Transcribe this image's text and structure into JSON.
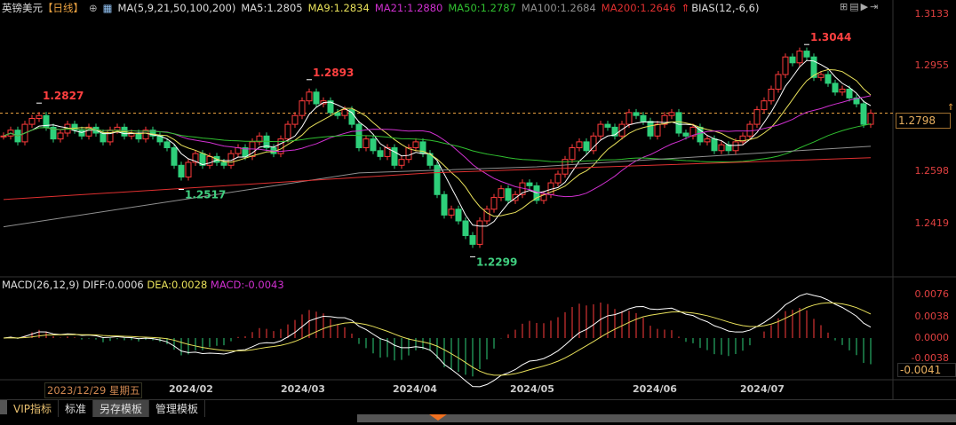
{
  "header": {
    "symbol": "英镑美元",
    "period": "【日线】",
    "ma_label": "MA(5,9,21,50,100,200)",
    "ma5": "MA5:1.2805",
    "ma9": "MA9:1.2834",
    "ma21": "MA21:1.2880",
    "ma50": "MA50:1.2787",
    "ma100": "MA100:1.2684",
    "ma200": "MA200:1.2646",
    "bias": "BIAS(12,-6,6)"
  },
  "price_axis": [
    "1.3133",
    "1.2955",
    "1.2598",
    "1.2419"
  ],
  "current_price": "1.2798",
  "macd_header": {
    "name": "MACD(26,12,9)",
    "diff": "DIFF:0.0006",
    "dea": "DEA:0.0028",
    "macd": "MACD:-0.0043"
  },
  "macd_axis": [
    "0.0076",
    "0.0038",
    "0.0000",
    "-0.0038"
  ],
  "macd_current": "-0.0041",
  "date_axis": {
    "cursor": "2023/12/29 星期五",
    "months": [
      "2024/02",
      "2024/03",
      "2024/04",
      "2024/05",
      "2024/06",
      "2024/07"
    ]
  },
  "tabs": [
    "VIP指标",
    "标准",
    "另存模板",
    "管理模板"
  ],
  "colors": {
    "up": "#ff3b3b",
    "down": "#2ecf7a",
    "ma5": "#ffffff",
    "ma9": "#e8e05a",
    "ma21": "#d030d0",
    "ma50": "#30c030",
    "ma100": "#909090",
    "ma200": "#e03030"
  },
  "chart_data": {
    "type": "candlestick",
    "ylim": [
      1.2419,
      1.3133
    ],
    "closes": [
      1.272,
      1.274,
      1.27,
      1.276,
      1.278,
      1.279,
      1.275,
      1.271,
      1.273,
      1.276,
      1.274,
      1.272,
      1.275,
      1.273,
      1.27,
      1.274,
      1.275,
      1.272,
      1.273,
      1.271,
      1.274,
      1.272,
      1.27,
      1.268,
      1.262,
      1.258,
      1.263,
      1.266,
      1.262,
      1.265,
      1.263,
      1.262,
      1.266,
      1.268,
      1.265,
      1.27,
      1.272,
      1.268,
      1.266,
      1.271,
      1.276,
      1.279,
      1.284,
      1.287,
      1.283,
      1.284,
      1.28,
      1.279,
      1.281,
      1.276,
      1.268,
      1.271,
      1.267,
      1.265,
      1.268,
      1.262,
      1.264,
      1.268,
      1.27,
      1.266,
      1.262,
      1.252,
      1.245,
      1.247,
      1.243,
      1.238,
      1.235,
      1.243,
      1.247,
      1.251,
      1.254,
      1.25,
      1.252,
      1.256,
      1.255,
      1.25,
      1.252,
      1.256,
      1.259,
      1.264,
      1.268,
      1.27,
      1.267,
      1.272,
      1.276,
      1.275,
      1.272,
      1.276,
      1.28,
      1.279,
      1.277,
      1.272,
      1.276,
      1.279,
      1.28,
      1.273,
      1.272,
      1.275,
      1.27,
      1.271,
      1.267,
      1.269,
      1.267,
      1.27,
      1.272,
      1.276,
      1.281,
      1.284,
      1.288,
      1.293,
      1.299,
      1.297,
      1.301,
      1.299,
      1.292,
      1.293,
      1.29,
      1.287,
      1.288,
      1.285,
      1.283,
      1.276,
      1.2798
    ],
    "extremes": [
      {
        "index": 5,
        "value": "1.2827",
        "kind": "high"
      },
      {
        "index": 25,
        "value": "1.2517",
        "kind": "low"
      },
      {
        "index": 43,
        "value": "1.2893",
        "kind": "high"
      },
      {
        "index": 66,
        "value": "1.2299",
        "kind": "low"
      },
      {
        "index": 113,
        "value": "1.3044",
        "kind": "high"
      }
    ],
    "ma100": [
      [
        0,
        1.241
      ],
      [
        50,
        1.2594
      ],
      [
        75,
        1.2615
      ],
      [
        122,
        1.2685
      ]
    ],
    "ma200": [
      [
        0,
        1.2503
      ],
      [
        60,
        1.2594
      ],
      [
        122,
        1.2646
      ]
    ]
  }
}
